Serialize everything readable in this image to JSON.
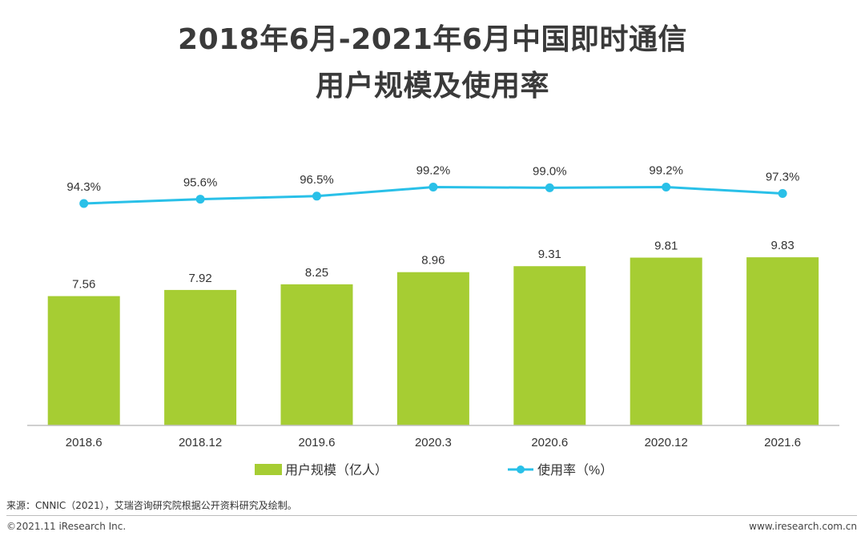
{
  "chart_data": {
    "type": "bar",
    "title_line1": "2018年6月-2021年6月中国即时通信",
    "title_line2": "用户规模及使用率",
    "categories": [
      "2018.6",
      "2018.12",
      "2019.6",
      "2020.3",
      "2020.6",
      "2020.12",
      "2021.6"
    ],
    "series": [
      {
        "name": "用户规模（亿人）",
        "type": "bar",
        "values": [
          7.56,
          7.92,
          8.25,
          8.96,
          9.31,
          9.81,
          9.83
        ],
        "labels": [
          "7.56",
          "7.92",
          "8.25",
          "8.96",
          "9.31",
          "9.81",
          "9.83"
        ],
        "color": "#a6cd33"
      },
      {
        "name": "使用率（%）",
        "type": "line",
        "values": [
          94.3,
          95.6,
          96.5,
          99.2,
          99.0,
          99.2,
          97.3
        ],
        "labels": [
          "94.3%",
          "95.6%",
          "96.5%",
          "99.2%",
          "99.0%",
          "99.2%",
          "97.3%"
        ],
        "color": "#29c0e8"
      }
    ],
    "legend_position": "bottom",
    "grid": false
  },
  "source_note": "来源：CNNIC（2021），艾瑞咨询研究院根据公开资料研究及绘制。",
  "footer": {
    "copyright": "©2021.11 iResearch Inc.",
    "website": "www.iresearch.com.cn"
  }
}
